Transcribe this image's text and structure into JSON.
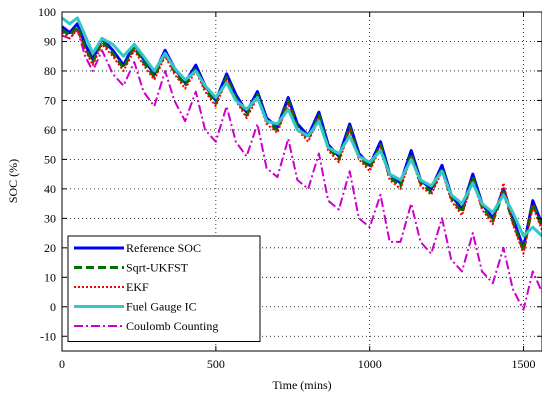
{
  "chart_data": {
    "type": "line",
    "title": "",
    "xlabel": "Time (mins)",
    "ylabel": "SOC (%)",
    "xlim": [
      0,
      1560
    ],
    "ylim": [
      -15,
      100
    ],
    "xticks": [
      0,
      500,
      1000,
      1500
    ],
    "yticks": [
      -10,
      0,
      10,
      20,
      30,
      40,
      50,
      60,
      70,
      80,
      90,
      100
    ],
    "grid": true,
    "grid_style": "dotted",
    "legend_position": "lower-left",
    "series": [
      {
        "name": "Reference SOC",
        "color": "#0000ff",
        "dash": "solid",
        "width": 3,
        "x": [
          0,
          25,
          50,
          75,
          100,
          130,
          165,
          200,
          235,
          265,
          300,
          335,
          365,
          400,
          435,
          465,
          500,
          535,
          565,
          600,
          635,
          665,
          700,
          735,
          765,
          800,
          835,
          865,
          900,
          935,
          965,
          1000,
          1035,
          1065,
          1100,
          1135,
          1165,
          1200,
          1235,
          1265,
          1300,
          1335,
          1365,
          1400,
          1435,
          1465,
          1500,
          1530,
          1560
        ],
        "y": [
          95,
          93,
          96,
          89,
          84,
          91,
          87,
          82,
          89,
          84,
          79,
          87,
          81,
          76,
          82,
          75,
          70,
          79,
          72,
          66,
          73,
          64,
          61,
          71,
          62,
          58,
          66,
          55,
          51,
          62,
          52,
          48,
          56,
          45,
          42,
          53,
          43,
          40,
          48,
          38,
          33,
          45,
          35,
          30,
          40,
          30,
          20,
          36,
          28
        ]
      },
      {
        "name": "Sqrt-UKFST",
        "color": "#007000",
        "dash": "dashed",
        "width": 3,
        "x": [
          0,
          25,
          50,
          75,
          100,
          130,
          165,
          200,
          235,
          265,
          300,
          335,
          365,
          400,
          435,
          465,
          500,
          535,
          565,
          600,
          635,
          665,
          700,
          735,
          765,
          800,
          835,
          865,
          900,
          935,
          965,
          1000,
          1035,
          1065,
          1100,
          1135,
          1165,
          1200,
          1235,
          1265,
          1300,
          1335,
          1365,
          1400,
          1435,
          1465,
          1500,
          1530,
          1560
        ],
        "y": [
          94,
          92,
          95,
          88,
          83,
          90,
          86,
          81,
          88,
          83,
          78,
          86,
          80,
          75,
          81,
          74,
          69,
          78,
          71,
          65,
          72,
          63,
          60,
          70,
          61,
          57,
          65,
          54,
          50,
          61,
          51,
          47,
          55,
          44,
          41,
          52,
          42,
          39,
          47,
          37,
          32,
          44,
          34,
          29,
          39,
          29,
          19,
          35,
          27
        ]
      },
      {
        "name": "EKF",
        "color": "#ff0000",
        "dash": "dotted",
        "width": 2,
        "x": [
          0,
          25,
          50,
          75,
          100,
          130,
          165,
          200,
          235,
          265,
          300,
          335,
          365,
          400,
          435,
          465,
          500,
          535,
          565,
          600,
          635,
          665,
          700,
          735,
          765,
          800,
          835,
          865,
          900,
          935,
          965,
          1000,
          1035,
          1065,
          1100,
          1135,
          1165,
          1200,
          1235,
          1265,
          1300,
          1335,
          1365,
          1400,
          1435,
          1465,
          1500,
          1530,
          1560
        ],
        "y": [
          93,
          91,
          94,
          87,
          82,
          89,
          85,
          80,
          87,
          82,
          77,
          85,
          79,
          74,
          80,
          73,
          68,
          77,
          70,
          64,
          71,
          62,
          59,
          69,
          60,
          56,
          64,
          53,
          49,
          60,
          50,
          46,
          54,
          43,
          40,
          51,
          41,
          38,
          46,
          36,
          31,
          43,
          33,
          28,
          42,
          28,
          18,
          34,
          26
        ]
      },
      {
        "name": "Fuel Gauge IC",
        "color": "#33c8c8",
        "dash": "solid",
        "width": 3,
        "x": [
          0,
          25,
          50,
          75,
          100,
          130,
          165,
          200,
          235,
          265,
          300,
          335,
          365,
          400,
          435,
          465,
          500,
          535,
          565,
          600,
          635,
          665,
          700,
          735,
          765,
          800,
          835,
          865,
          900,
          935,
          965,
          1000,
          1035,
          1065,
          1100,
          1135,
          1165,
          1200,
          1235,
          1265,
          1300,
          1335,
          1365,
          1400,
          1435,
          1465,
          1500,
          1530,
          1560
        ],
        "y": [
          98,
          96,
          98,
          92,
          86,
          91,
          89,
          85,
          89,
          85,
          80,
          86,
          81,
          77,
          80,
          75,
          71,
          76,
          70,
          67,
          71,
          63,
          62,
          67,
          60,
          58,
          63,
          54,
          52,
          58,
          51,
          49,
          53,
          45,
          43,
          50,
          43,
          41,
          46,
          38,
          35,
          42,
          35,
          32,
          38,
          32,
          24,
          27,
          24
        ]
      },
      {
        "name": "Coulomb Counting",
        "color": "#cc00cc",
        "dash": "dashdot",
        "width": 2,
        "x": [
          0,
          25,
          50,
          75,
          100,
          130,
          165,
          200,
          235,
          265,
          300,
          335,
          365,
          400,
          435,
          465,
          500,
          535,
          565,
          600,
          635,
          665,
          700,
          735,
          765,
          800,
          835,
          865,
          900,
          935,
          965,
          1000,
          1035,
          1065,
          1100,
          1135,
          1165,
          1200,
          1235,
          1265,
          1300,
          1335,
          1365,
          1400,
          1435,
          1465,
          1500,
          1530,
          1560
        ],
        "y": [
          92,
          91,
          94,
          85,
          80,
          87,
          79,
          75,
          83,
          73,
          68,
          80,
          70,
          63,
          73,
          60,
          56,
          68,
          56,
          51,
          62,
          47,
          44,
          57,
          43,
          40,
          52,
          36,
          33,
          46,
          30,
          27,
          38,
          22,
          22,
          35,
          22,
          18,
          30,
          16,
          12,
          25,
          12,
          8,
          20,
          6,
          -1,
          12,
          5
        ]
      }
    ]
  }
}
